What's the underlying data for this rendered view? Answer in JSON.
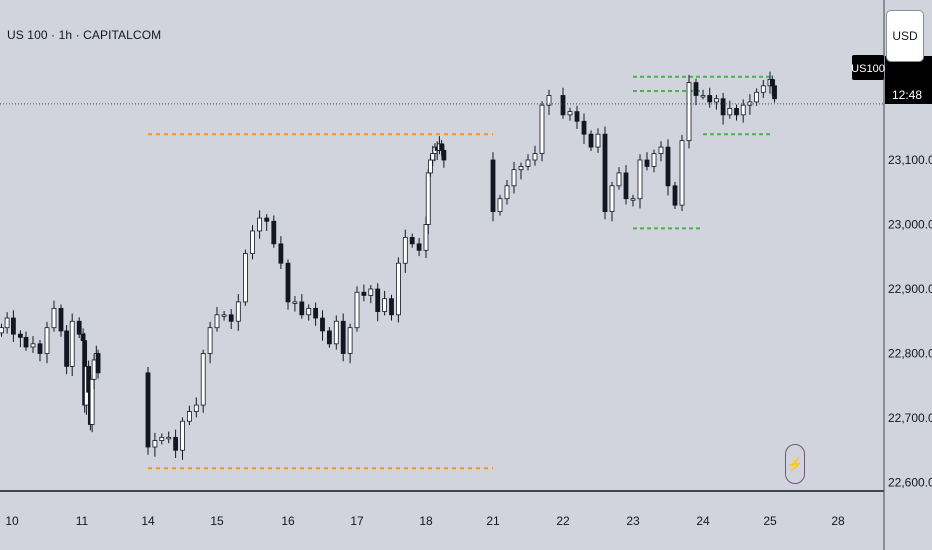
{
  "header": {
    "symbol_title": "US 100 · 1h · CAPITALCOM",
    "currency_button": "USD"
  },
  "price_scale": {
    "ticks": [
      "23,100.0",
      "23,000.0",
      "22,900.0",
      "22,800.0",
      "22,700.0",
      "22,600.0"
    ],
    "current_symbol_label": "US100",
    "countdown_label": "12:48"
  },
  "time_scale": {
    "ticks": [
      "10",
      "11",
      "14",
      "15",
      "16",
      "17",
      "18",
      "21",
      "22",
      "23",
      "24",
      "25",
      "28"
    ]
  },
  "colors": {
    "background": "#d1d4dc",
    "up_candle": "#ffffff",
    "down_candle": "#131722",
    "wick": "#131722",
    "orange_level": "#f7941d",
    "green_level": "#4caf50",
    "axis_line": "#434651",
    "label_bg": "#000000"
  },
  "chart_data": {
    "type": "candlestick",
    "symbol": "US 100",
    "timeframe": "1h",
    "ylim": [
      22590,
      23215
    ],
    "y_ticks": [
      23100,
      23000,
      22900,
      22800,
      22700,
      22600
    ],
    "x_tick_labels": [
      "10",
      "11",
      "14",
      "15",
      "16",
      "17",
      "18",
      "21",
      "22",
      "23",
      "24",
      "25",
      "28"
    ],
    "x_ticks": [
      10,
      11,
      14,
      15,
      16,
      17,
      18,
      21,
      22,
      23,
      24,
      25,
      28
    ],
    "current_price_line": 23187,
    "closes": [
      [
        9.85,
        22840
      ],
      [
        9.93,
        22855
      ],
      [
        10.02,
        22830
      ],
      [
        10.12,
        22825
      ],
      [
        10.2,
        22810
      ],
      [
        10.3,
        22815
      ],
      [
        10.4,
        22800
      ],
      [
        10.5,
        22840
      ],
      [
        10.6,
        22870
      ],
      [
        10.7,
        22835
      ],
      [
        10.78,
        22780
      ],
      [
        10.86,
        22850
      ],
      [
        10.96,
        22830
      ],
      [
        11.05,
        22820
      ],
      [
        11.12,
        22720
      ],
      [
        11.2,
        22780
      ],
      [
        11.3,
        22740
      ],
      [
        11.38,
        22690
      ],
      [
        11.46,
        22760
      ],
      [
        11.55,
        22790
      ],
      [
        11.65,
        22800
      ],
      [
        11.73,
        22770
      ],
      [
        14.0,
        22655
      ],
      [
        14.1,
        22665
      ],
      [
        14.2,
        22670
      ],
      [
        14.3,
        22670
      ],
      [
        14.4,
        22650
      ],
      [
        14.5,
        22695
      ],
      [
        14.6,
        22710
      ],
      [
        14.7,
        22720
      ],
      [
        14.8,
        22800
      ],
      [
        14.9,
        22840
      ],
      [
        15.0,
        22860
      ],
      [
        15.1,
        22860
      ],
      [
        15.2,
        22850
      ],
      [
        15.3,
        22880
      ],
      [
        15.4,
        22955
      ],
      [
        15.5,
        22990
      ],
      [
        15.6,
        23010
      ],
      [
        15.7,
        23005
      ],
      [
        15.8,
        22970
      ],
      [
        15.9,
        22940
      ],
      [
        16.0,
        22880
      ],
      [
        16.1,
        22880
      ],
      [
        16.2,
        22860
      ],
      [
        16.3,
        22870
      ],
      [
        16.4,
        22855
      ],
      [
        16.5,
        22835
      ],
      [
        16.6,
        22815
      ],
      [
        16.7,
        22850
      ],
      [
        16.8,
        22800
      ],
      [
        16.9,
        22840
      ],
      [
        17.0,
        22895
      ],
      [
        17.1,
        22890
      ],
      [
        17.2,
        22900
      ],
      [
        17.3,
        22865
      ],
      [
        17.4,
        22885
      ],
      [
        17.5,
        22860
      ],
      [
        17.6,
        22940
      ],
      [
        17.7,
        22980
      ],
      [
        17.8,
        22970
      ],
      [
        17.9,
        22960
      ],
      [
        18.0,
        23000
      ],
      [
        18.1,
        23080
      ],
      [
        18.2,
        23100
      ],
      [
        18.3,
        23110
      ],
      [
        18.4,
        23120
      ],
      [
        18.5,
        23115
      ],
      [
        18.6,
        23125
      ],
      [
        18.7,
        23115
      ],
      [
        18.8,
        23100
      ],
      [
        21.0,
        23020
      ],
      [
        21.1,
        23040
      ],
      [
        21.2,
        23060
      ],
      [
        21.3,
        23085
      ],
      [
        21.4,
        23090
      ],
      [
        21.5,
        23100
      ],
      [
        21.6,
        23110
      ],
      [
        21.7,
        23185
      ],
      [
        21.8,
        23200
      ],
      [
        22.0,
        23170
      ],
      [
        22.1,
        23175
      ],
      [
        22.2,
        23160
      ],
      [
        22.3,
        23140
      ],
      [
        22.4,
        23120
      ],
      [
        22.5,
        23140
      ],
      [
        22.6,
        23020
      ],
      [
        22.7,
        23060
      ],
      [
        22.8,
        23080
      ],
      [
        22.9,
        23040
      ],
      [
        23.0,
        23040
      ],
      [
        23.1,
        23100
      ],
      [
        23.2,
        23090
      ],
      [
        23.3,
        23110
      ],
      [
        23.4,
        23120
      ],
      [
        23.5,
        23060
      ],
      [
        23.6,
        23030
      ],
      [
        23.7,
        23130
      ],
      [
        23.8,
        23220
      ],
      [
        23.9,
        23200
      ],
      [
        24.0,
        23200
      ],
      [
        24.1,
        23190
      ],
      [
        24.2,
        23195
      ],
      [
        24.3,
        23170
      ],
      [
        24.4,
        23180
      ],
      [
        24.5,
        23170
      ],
      [
        24.6,
        23185
      ],
      [
        24.7,
        23190
      ],
      [
        24.8,
        23205
      ],
      [
        24.9,
        23215
      ],
      [
        25.0,
        23225
      ],
      [
        25.1,
        23215
      ],
      [
        25.2,
        23195
      ]
    ],
    "levels": [
      {
        "color": "orange",
        "y": 23140,
        "x_from": 14.0,
        "x_to": 21.0
      },
      {
        "color": "orange",
        "y": 22622,
        "x_from": 14.0,
        "x_to": 21.0
      },
      {
        "color": "green",
        "y": 23229,
        "x_from": 23.0,
        "x_to": 25.0
      },
      {
        "color": "green",
        "y": 23207,
        "x_from": 23.0,
        "x_to": 24.0
      },
      {
        "color": "green",
        "y": 23140,
        "x_from": 24.0,
        "x_to": 25.0
      },
      {
        "color": "green",
        "y": 22994,
        "x_from": 23.0,
        "x_to": 24.0
      }
    ]
  }
}
